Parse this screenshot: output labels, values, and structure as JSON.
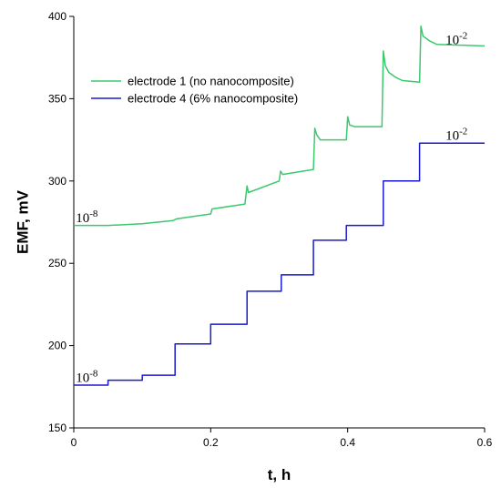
{
  "chart_data": {
    "type": "line",
    "title": "",
    "xlabel": "t, h",
    "ylabel": "EMF, mV",
    "xlim": [
      0,
      0.6
    ],
    "ylim": [
      150,
      400
    ],
    "xticks": [
      0,
      0.2,
      0.4,
      0.6
    ],
    "xtick_labels": [
      "0",
      "0.2",
      "0.4",
      "0.6"
    ],
    "yticks": [
      150,
      200,
      250,
      300,
      350,
      400
    ],
    "ytick_labels": [
      "150",
      "200",
      "250",
      "300",
      "350",
      "400"
    ],
    "grid": false,
    "legend_position": "top-left",
    "series": [
      {
        "name": "electrode 1 (no nanocomposite)",
        "color": "#3cc86e",
        "x": [
          0,
          0.05,
          0.1,
          0.145,
          0.15,
          0.2,
          0.202,
          0.25,
          0.253,
          0.255,
          0.3,
          0.302,
          0.305,
          0.35,
          0.352,
          0.355,
          0.36,
          0.398,
          0.4,
          0.403,
          0.41,
          0.45,
          0.452,
          0.455,
          0.46,
          0.47,
          0.48,
          0.505,
          0.507,
          0.51,
          0.52,
          0.53,
          0.6
        ],
        "y": [
          273,
          273,
          274,
          276,
          277,
          280,
          283,
          286,
          297,
          293,
          300,
          306,
          304,
          307,
          332,
          328,
          325,
          325,
          339,
          334,
          333,
          333,
          379,
          370,
          366,
          363,
          361,
          360,
          394,
          388,
          385,
          383,
          382
        ]
      },
      {
        "name": "electrode 4 (6% nanocomposite)",
        "color": "#1a1ad0",
        "x": [
          0,
          0.05,
          0.05,
          0.1,
          0.1,
          0.148,
          0.148,
          0.2,
          0.2,
          0.253,
          0.253,
          0.303,
          0.303,
          0.35,
          0.35,
          0.398,
          0.398,
          0.452,
          0.452,
          0.505,
          0.505,
          0.6
        ],
        "y": [
          176,
          176,
          179,
          179,
          182,
          182,
          201,
          201,
          213,
          213,
          233,
          233,
          243,
          243,
          264,
          264,
          273,
          273,
          300,
          300,
          323,
          323
        ]
      }
    ],
    "annotations": [
      {
        "base": "10",
        "exp": "-8",
        "x": 0.003,
        "y": 275
      },
      {
        "base": "10",
        "exp": "-2",
        "x": 0.543,
        "y": 383
      },
      {
        "base": "10",
        "exp": "-8",
        "x": 0.003,
        "y": 178
      },
      {
        "base": "10",
        "exp": "-2",
        "x": 0.543,
        "y": 325
      }
    ]
  }
}
